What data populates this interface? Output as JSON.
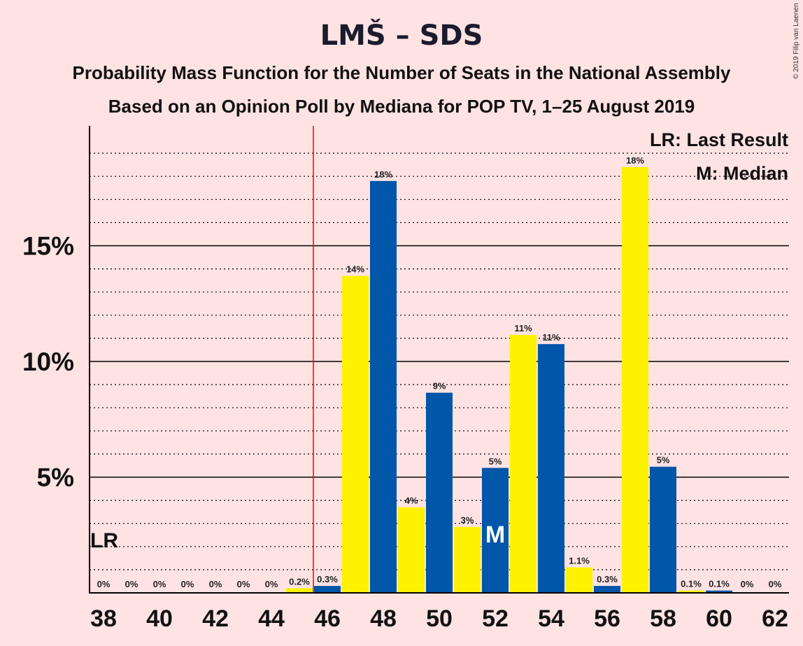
{
  "chart_data": {
    "type": "bar",
    "title": "LMŠ – SDS",
    "subtitle1": "Probability Mass Function for the Number of Seats in the National Assembly",
    "subtitle2": "Based on an Opinion Poll by Mediana for POP TV, 1–25 August 2019",
    "copyright": "© 2019 Filip van Laenen",
    "x": [
      38,
      39,
      40,
      41,
      42,
      43,
      44,
      45,
      46,
      47,
      48,
      49,
      50,
      51,
      52,
      53,
      54,
      55,
      56,
      57,
      58,
      59,
      60,
      61,
      62
    ],
    "values": [
      0,
      0,
      0,
      0,
      0,
      0,
      0,
      0.2,
      0.3,
      13.7,
      17.8,
      3.7,
      8.65,
      2.85,
      5.4,
      11.15,
      10.75,
      1.1,
      0.3,
      18.4,
      5.45,
      0.1,
      0.1,
      0,
      0
    ],
    "value_labels": [
      "0%",
      "0%",
      "0%",
      "0%",
      "0%",
      "0%",
      "0%",
      "0.2%",
      "0.3%",
      "14%",
      "18%",
      "4%",
      "9%",
      "3%",
      "5%",
      "11%",
      "11%",
      "1.1%",
      "0.3%",
      "18%",
      "5%",
      "0.1%",
      "0.1%",
      "0%",
      "0%"
    ],
    "x_tick_labels": [
      "38",
      "40",
      "42",
      "44",
      "46",
      "48",
      "50",
      "52",
      "54",
      "56",
      "58",
      "60",
      "62"
    ],
    "y_tick_labels": [
      "5%",
      "10%",
      "15%"
    ],
    "y_ticks": [
      5,
      10,
      15
    ],
    "ylim": [
      0,
      20
    ],
    "last_result_seat": 45.5,
    "median_seat": 52,
    "lr_marker": "LR",
    "median_marker": "M",
    "legend": [
      "LR: Last Result",
      "M: Median"
    ],
    "legend_position": "top-right",
    "colors": {
      "yellow": "#fff200",
      "blue": "#0056a8",
      "background": "#ffe3e3",
      "lr_line": "#ff0000",
      "grid": "#000000"
    }
  }
}
